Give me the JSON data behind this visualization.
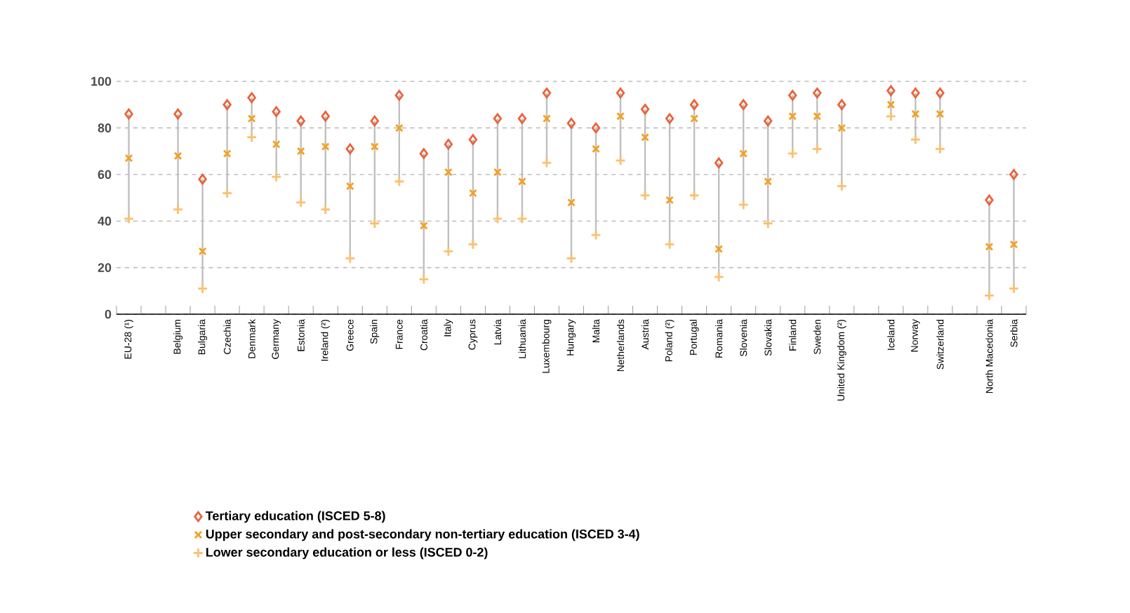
{
  "chart_data": {
    "type": "scatter",
    "categories": [
      "EU-28 (¹)",
      null,
      "Belgium",
      "Bulgaria",
      "Czechia",
      "Denmark",
      "Germany",
      "Estonia",
      "Ireland (²)",
      "Greece",
      "Spain",
      "France",
      "Croatia",
      "Italy",
      "Cyprus",
      "Latvia",
      "Lithuania",
      "Luxembourg",
      "Hungary",
      "Malta",
      "Netherlands",
      "Austria",
      "Poland (²)",
      "Portugal",
      "Romania",
      "Slovenia",
      "Slovakia",
      "Finland",
      "Sweden",
      "United Kingdom (²)",
      null,
      "Iceland",
      "Norway",
      "Switzerland",
      null,
      "North Macedonia",
      "Serbia"
    ],
    "series": [
      {
        "name": "Tertiary education (ISCED 5-8)",
        "color": "#e8643c",
        "marker": "diamond",
        "values": [
          86,
          null,
          86,
          58,
          90,
          93,
          87,
          83,
          85,
          71,
          83,
          94,
          69,
          73,
          75,
          84,
          84,
          95,
          82,
          80,
          95,
          88,
          84,
          90,
          65,
          90,
          83,
          94,
          95,
          90,
          null,
          96,
          95,
          95,
          null,
          49,
          60
        ]
      },
      {
        "name": "Upper secondary and post-secondary non-tertiary education (ISCED 3-4)",
        "color": "#f5a020",
        "marker": "cross",
        "values": [
          67,
          null,
          68,
          27,
          69,
          84,
          73,
          70,
          72,
          55,
          72,
          80,
          38,
          61,
          52,
          61,
          57,
          84,
          48,
          71,
          85,
          76,
          49,
          84,
          28,
          69,
          57,
          85,
          85,
          80,
          null,
          90,
          86,
          86,
          null,
          29,
          30
        ]
      },
      {
        "name": "Lower secondary education or less (ISCED 0-2)",
        "color": "#fbc070",
        "marker": "plus",
        "values": [
          41,
          null,
          45,
          11,
          52,
          76,
          59,
          48,
          45,
          24,
          39,
          57,
          15,
          27,
          30,
          41,
          41,
          65,
          24,
          34,
          66,
          51,
          30,
          51,
          16,
          47,
          39,
          69,
          71,
          55,
          null,
          85,
          75,
          71,
          null,
          8,
          11
        ]
      }
    ],
    "ylim": [
      0,
      100
    ],
    "yticks": [
      0,
      20,
      40,
      60,
      80,
      100
    ],
    "grid": "y",
    "legend": "bottom"
  }
}
